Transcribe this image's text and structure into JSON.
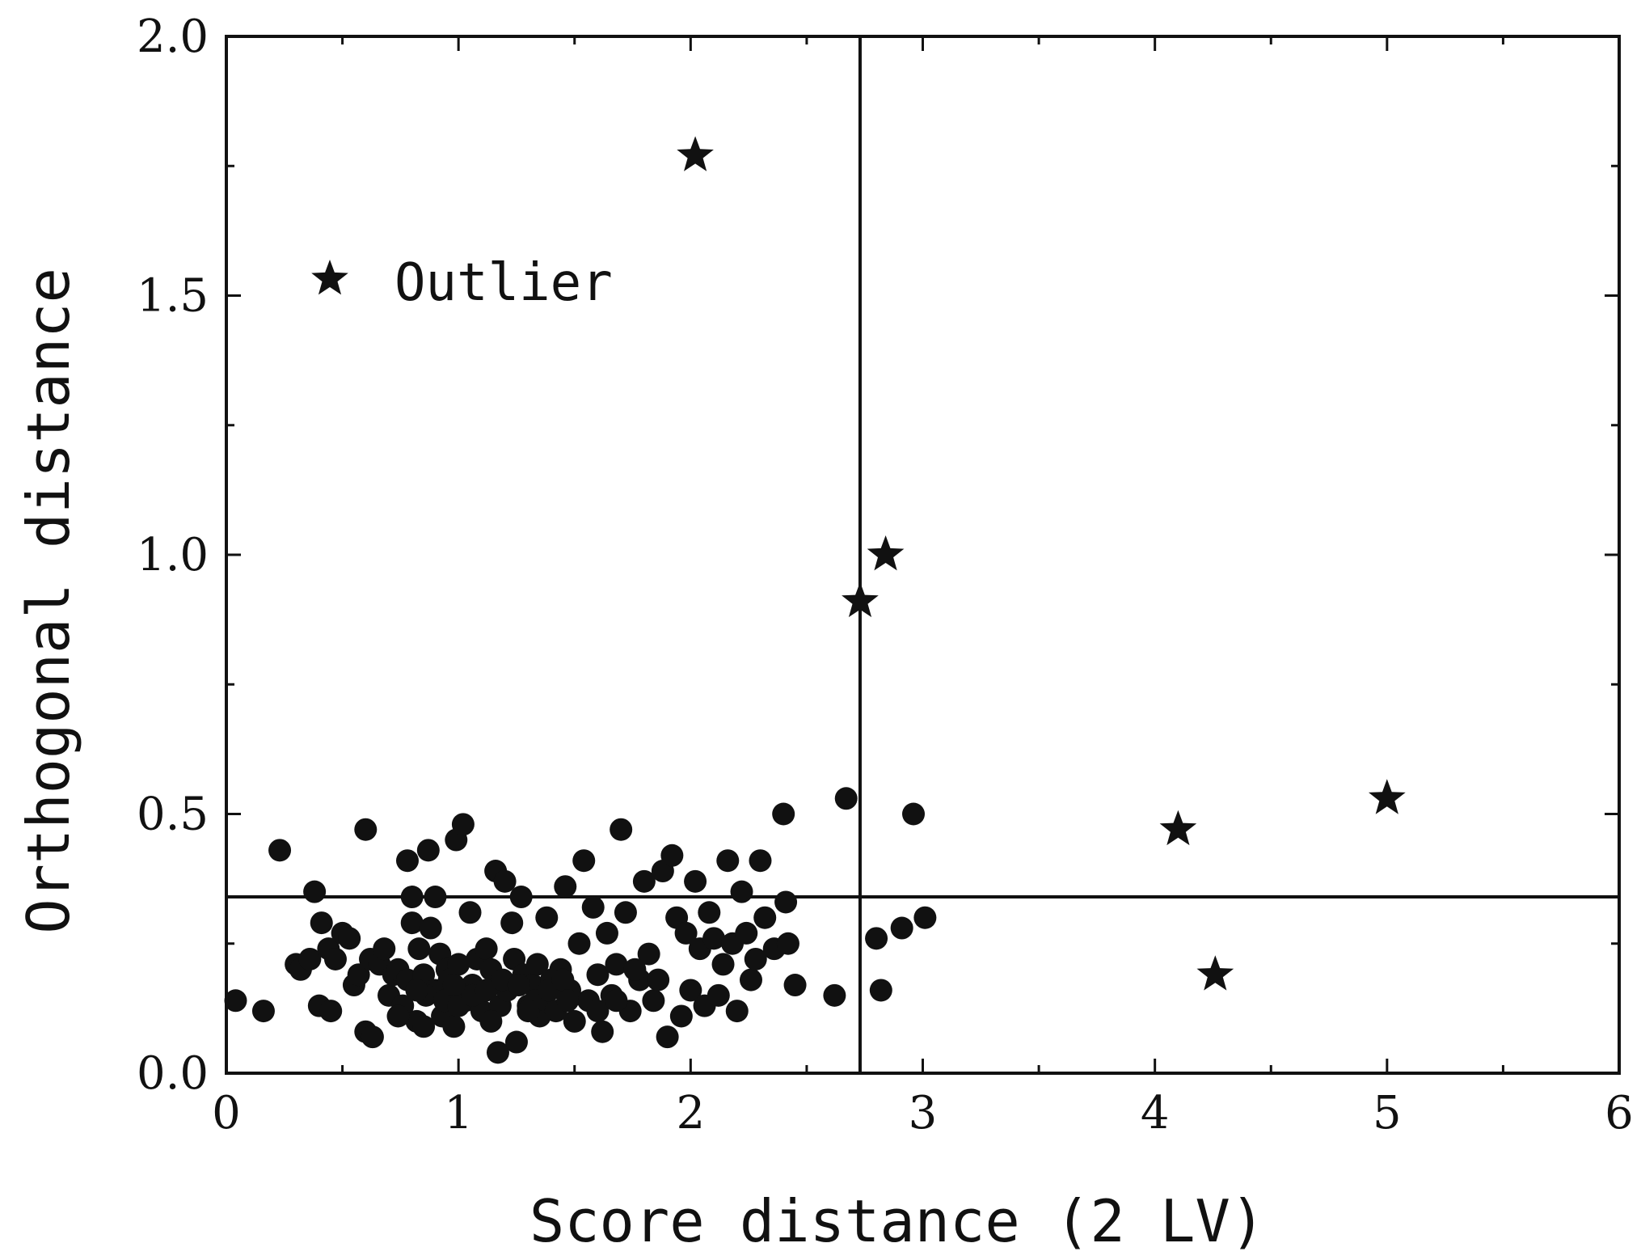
{
  "chart_data": {
    "type": "scatter",
    "xlabel": "Score distance (2 LV)",
    "ylabel": "Orthogonal distance",
    "xlim": [
      0,
      6
    ],
    "ylim": [
      0,
      2.0
    ],
    "x_ticks": [
      "0",
      "1",
      "2",
      "3",
      "4",
      "5",
      "6"
    ],
    "y_ticks": [
      "0.0",
      "0.5",
      "1.0",
      "1.5",
      "2.0"
    ],
    "thresholds": {
      "score_distance": 2.73,
      "orthogonal_distance": 0.34
    },
    "legend": {
      "label": "Outlier",
      "position": "top-left"
    },
    "series": [
      {
        "marker": "circle",
        "points": [
          [
            0.04,
            0.14
          ],
          [
            0.16,
            0.12
          ],
          [
            0.23,
            0.43
          ],
          [
            0.3,
            0.21
          ],
          [
            0.32,
            0.2
          ],
          [
            0.36,
            0.22
          ],
          [
            0.38,
            0.35
          ],
          [
            0.4,
            0.13
          ],
          [
            0.41,
            0.29
          ],
          [
            0.44,
            0.24
          ],
          [
            0.45,
            0.12
          ],
          [
            0.47,
            0.22
          ],
          [
            0.5,
            0.27
          ],
          [
            0.53,
            0.26
          ],
          [
            0.55,
            0.17
          ],
          [
            0.57,
            0.19
          ],
          [
            0.6,
            0.47
          ],
          [
            0.6,
            0.08
          ],
          [
            0.62,
            0.22
          ],
          [
            0.63,
            0.07
          ],
          [
            0.66,
            0.21
          ],
          [
            0.68,
            0.24
          ],
          [
            0.7,
            0.15
          ],
          [
            0.72,
            0.19
          ],
          [
            0.74,
            0.2
          ],
          [
            0.76,
            0.13
          ],
          [
            0.78,
            0.41
          ],
          [
            0.78,
            0.18
          ],
          [
            0.8,
            0.29
          ],
          [
            0.8,
            0.34
          ],
          [
            0.82,
            0.1
          ],
          [
            0.83,
            0.24
          ],
          [
            0.85,
            0.19
          ],
          [
            0.85,
            0.09
          ],
          [
            0.87,
            0.43
          ],
          [
            0.88,
            0.28
          ],
          [
            0.9,
            0.16
          ],
          [
            0.9,
            0.34
          ],
          [
            0.92,
            0.23
          ],
          [
            0.93,
            0.11
          ],
          [
            0.95,
            0.2
          ],
          [
            0.96,
            0.18
          ],
          [
            0.98,
            0.09
          ],
          [
            0.99,
            0.45
          ],
          [
            1.0,
            0.21
          ],
          [
            1.02,
            0.48
          ],
          [
            1.03,
            0.14
          ],
          [
            1.05,
            0.31
          ],
          [
            1.06,
            0.17
          ],
          [
            1.08,
            0.22
          ],
          [
            1.1,
            0.12
          ],
          [
            1.12,
            0.24
          ],
          [
            1.14,
            0.2
          ],
          [
            1.16,
            0.39
          ],
          [
            1.17,
            0.04
          ],
          [
            1.18,
            0.13
          ],
          [
            1.2,
            0.37
          ],
          [
            1.21,
            0.16
          ],
          [
            1.23,
            0.29
          ],
          [
            1.24,
            0.22
          ],
          [
            1.25,
            0.06
          ],
          [
            1.27,
            0.34
          ],
          [
            1.28,
            0.19
          ],
          [
            1.3,
            0.13
          ],
          [
            1.32,
            0.17
          ],
          [
            1.34,
            0.21
          ],
          [
            1.35,
            0.11
          ],
          [
            1.37,
            0.15
          ],
          [
            1.38,
            0.3
          ],
          [
            1.4,
            0.18
          ],
          [
            1.42,
            0.12
          ],
          [
            1.44,
            0.2
          ],
          [
            1.46,
            0.36
          ],
          [
            1.48,
            0.16
          ],
          [
            1.5,
            0.1
          ],
          [
            1.52,
            0.25
          ],
          [
            1.54,
            0.41
          ],
          [
            1.56,
            0.14
          ],
          [
            1.58,
            0.32
          ],
          [
            1.6,
            0.19
          ],
          [
            1.62,
            0.08
          ],
          [
            1.64,
            0.27
          ],
          [
            1.66,
            0.15
          ],
          [
            1.68,
            0.21
          ],
          [
            1.7,
            0.47
          ],
          [
            1.72,
            0.31
          ],
          [
            1.74,
            0.12
          ],
          [
            1.78,
            0.18
          ],
          [
            1.8,
            0.37
          ],
          [
            1.82,
            0.23
          ],
          [
            1.84,
            0.14
          ],
          [
            1.88,
            0.39
          ],
          [
            1.9,
            0.07
          ],
          [
            1.92,
            0.42
          ],
          [
            1.94,
            0.3
          ],
          [
            1.96,
            0.11
          ],
          [
            1.98,
            0.27
          ],
          [
            2.0,
            0.16
          ],
          [
            2.02,
            0.37
          ],
          [
            2.04,
            0.24
          ],
          [
            2.06,
            0.13
          ],
          [
            2.08,
            0.31
          ],
          [
            2.1,
            0.26
          ],
          [
            2.12,
            0.15
          ],
          [
            2.14,
            0.21
          ],
          [
            2.16,
            0.41
          ],
          [
            2.18,
            0.25
          ],
          [
            2.2,
            0.12
          ],
          [
            2.22,
            0.35
          ],
          [
            2.24,
            0.27
          ],
          [
            2.26,
            0.18
          ],
          [
            2.28,
            0.22
          ],
          [
            2.3,
            0.41
          ],
          [
            2.32,
            0.3
          ],
          [
            2.36,
            0.24
          ],
          [
            2.4,
            0.5
          ],
          [
            2.41,
            0.33
          ],
          [
            2.42,
            0.25
          ],
          [
            2.45,
            0.17
          ],
          [
            2.62,
            0.15
          ],
          [
            2.67,
            0.53
          ],
          [
            2.8,
            0.26
          ],
          [
            2.82,
            0.16
          ],
          [
            2.91,
            0.28
          ],
          [
            2.96,
            0.5
          ],
          [
            3.01,
            0.3
          ],
          [
            0.86,
            0.15
          ],
          [
            0.94,
            0.14
          ],
          [
            1.0,
            0.13
          ],
          [
            1.06,
            0.15
          ],
          [
            1.12,
            0.16
          ],
          [
            1.19,
            0.18
          ],
          [
            1.26,
            0.17
          ],
          [
            1.33,
            0.14
          ],
          [
            1.39,
            0.16
          ],
          [
            1.45,
            0.18
          ],
          [
            0.74,
            0.11
          ],
          [
            0.82,
            0.16
          ],
          [
            0.98,
            0.17
          ],
          [
            1.14,
            0.1
          ],
          [
            1.3,
            0.12
          ],
          [
            1.47,
            0.14
          ],
          [
            1.6,
            0.12
          ],
          [
            1.68,
            0.14
          ],
          [
            1.76,
            0.2
          ],
          [
            1.86,
            0.18
          ]
        ]
      },
      {
        "name": "Outlier",
        "marker": "star",
        "points": [
          [
            2.02,
            1.77
          ],
          [
            2.73,
            0.91
          ],
          [
            2.84,
            1.0
          ],
          [
            4.1,
            0.47
          ],
          [
            4.26,
            0.19
          ],
          [
            5.0,
            0.53
          ]
        ]
      }
    ]
  }
}
